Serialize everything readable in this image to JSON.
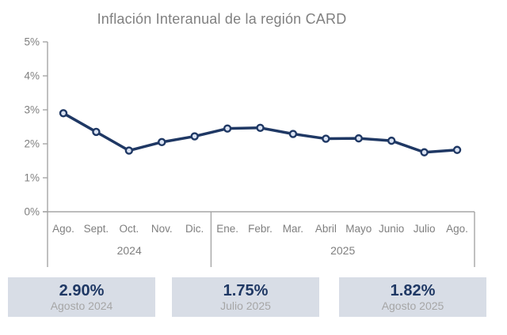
{
  "chart": {
    "title": "Inflación Interanual de la región CARD"
  },
  "chart_data": {
    "type": "line",
    "title": "Inflación Interanual de la región CARD",
    "x_groups": [
      {
        "year": "2024",
        "months": [
          "Ago.",
          "Sept.",
          "Oct.",
          "Nov.",
          "Dic."
        ]
      },
      {
        "year": "2025",
        "months": [
          "Ene.",
          "Febr.",
          "Mar.",
          "Abril",
          "Mayo",
          "Junio",
          "Julio",
          "Ago."
        ]
      }
    ],
    "categories": [
      "Ago. 2024",
      "Sept. 2024",
      "Oct. 2024",
      "Nov. 2024",
      "Dic. 2024",
      "Ene. 2025",
      "Febr. 2025",
      "Mar. 2025",
      "Abril 2025",
      "Mayo 2025",
      "Junio 2025",
      "Julio 2025",
      "Ago. 2025"
    ],
    "values": [
      2.9,
      2.35,
      1.8,
      2.05,
      2.22,
      2.45,
      2.47,
      2.29,
      2.15,
      2.16,
      2.09,
      1.75,
      1.82
    ],
    "ylim": [
      0,
      5
    ],
    "ytick_labels": [
      "0%",
      "1%",
      "2%",
      "3%",
      "4%",
      "5%"
    ],
    "grid": "off",
    "legend": "none",
    "line_color": "#1f3864",
    "marker_fill": "#dae3f3",
    "axis_color": "#a6a6a6",
    "tick_label_color": "#7f7f7f"
  },
  "summary_cards": [
    {
      "value": "2.90%",
      "label": "Agosto 2024"
    },
    {
      "value": "1.75%",
      "label": "Julio 2025"
    },
    {
      "value": "1.82%",
      "label": "Agosto 2025"
    }
  ],
  "colors": {
    "accent_navy": "#1f3864",
    "card_background": "#d8dde6",
    "title_gray": "#808080"
  }
}
